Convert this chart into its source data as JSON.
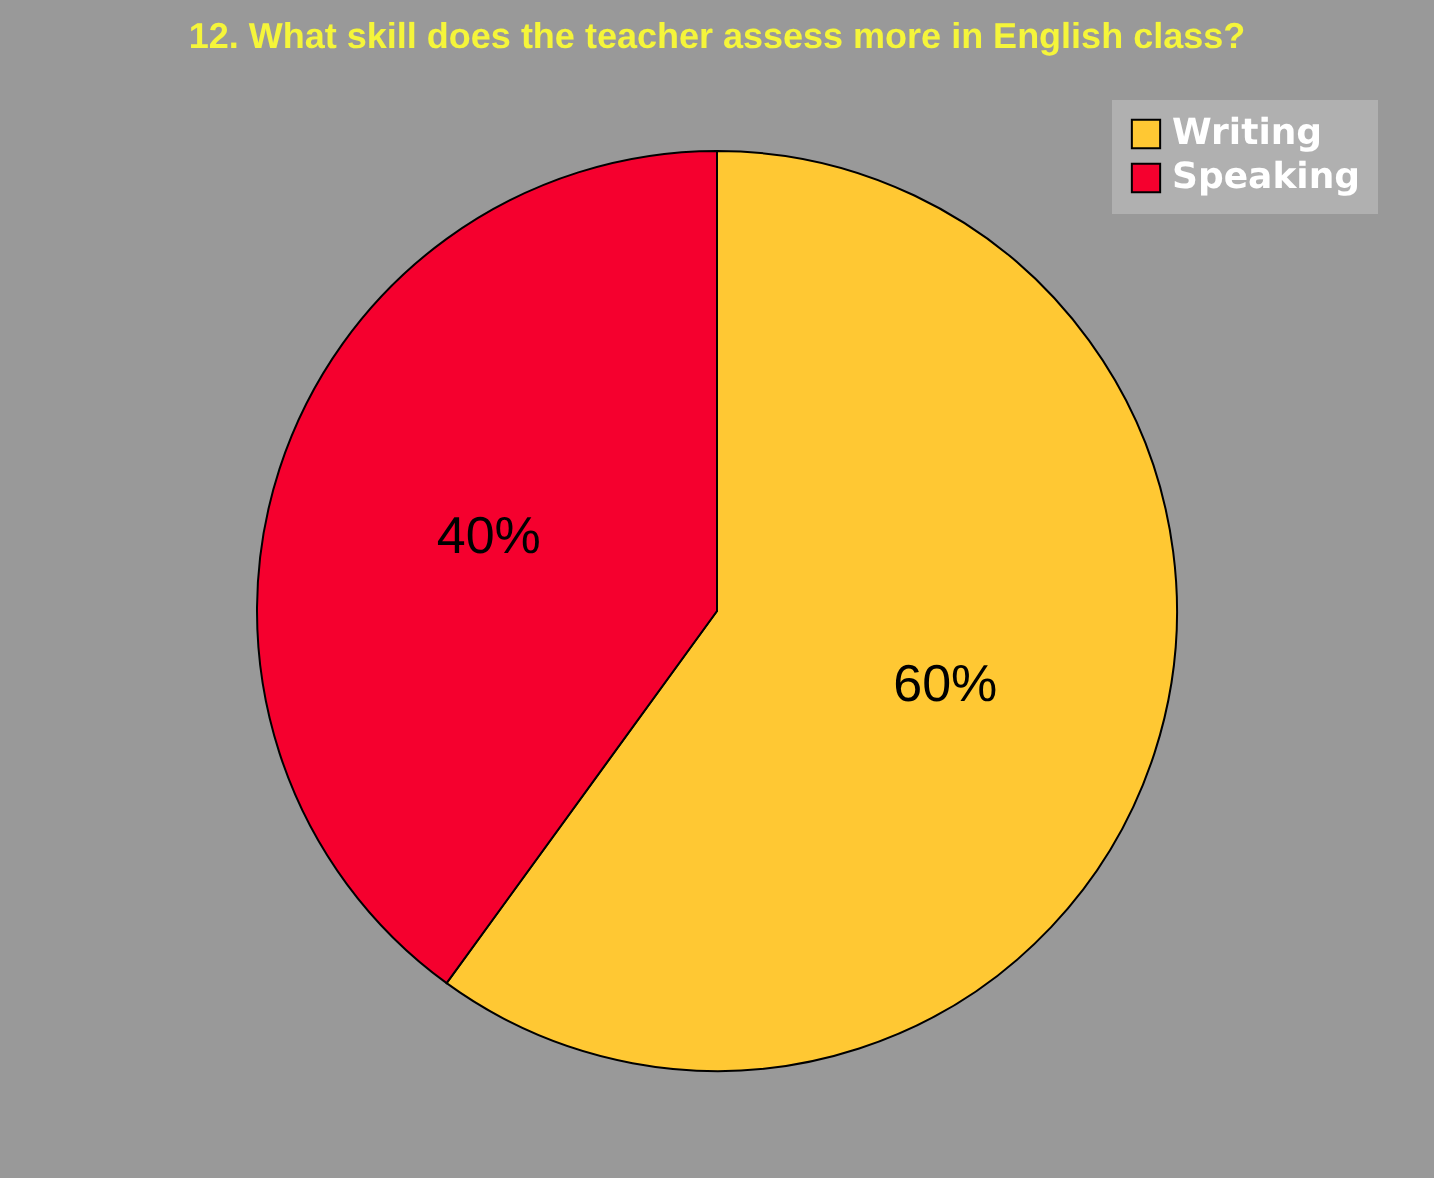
{
  "chart_data": {
    "type": "pie",
    "title": "12.  What skill does the teacher assess more in English class?",
    "categories": [
      "Writing",
      "Speaking"
    ],
    "values": [
      60,
      40
    ],
    "colors": [
      "#ffc833",
      "#f5002e"
    ],
    "value_labels": [
      "60%",
      "40%"
    ],
    "legend": "top right"
  }
}
